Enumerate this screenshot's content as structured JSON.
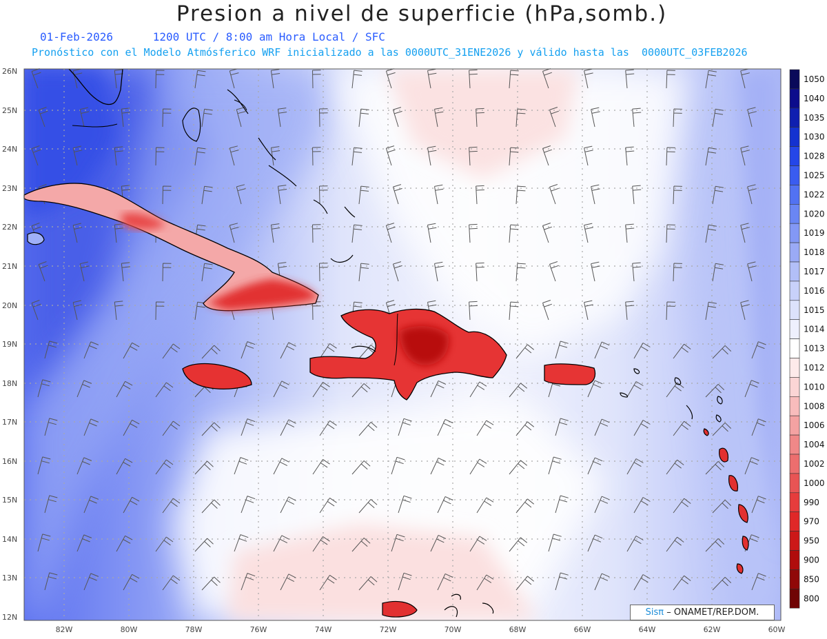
{
  "title": "Presion a nivel de superficie (hPa,somb.)",
  "subtitle_line1": "01-Feb-2026      1200 UTC / 8:00 am Hora Local / SFC",
  "subtitle_line2": "Pronóstico con el Modelo Atmósferico WRF inicializado a las 0000UTC_31ENE2026 y válido hasta las  0000UTC_03FEB2026",
  "lat_labels": [
    "26N",
    "25N",
    "24N",
    "23N",
    "22N",
    "21N",
    "20N",
    "19N",
    "18N",
    "17N",
    "16N",
    "15N",
    "14N",
    "13N",
    "12N"
  ],
  "lon_labels": [
    "82W",
    "80W",
    "78W",
    "76W",
    "74W",
    "72W",
    "70W",
    "68W",
    "66W",
    "64W",
    "62W",
    "60W"
  ],
  "colorbar": {
    "levels": [
      "1050",
      "1040",
      "1035",
      "1030",
      "1028",
      "1025",
      "1022",
      "1020",
      "1019",
      "1018",
      "1017",
      "1016",
      "1015",
      "1014",
      "1013",
      "1012",
      "1010",
      "1008",
      "1006",
      "1004",
      "1002",
      "1000",
      "990",
      "970",
      "950",
      "900",
      "850",
      "800"
    ],
    "colors": [
      "#0a0a5a",
      "#0c0c8c",
      "#0f1fb0",
      "#1432d0",
      "#2446e8",
      "#3a5cf0",
      "#5272f2",
      "#6a86f4",
      "#8398f5",
      "#9aaaf6",
      "#b2bff8",
      "#c8d1fa",
      "#dce2fb",
      "#eef0fd",
      "#ffffff",
      "#fdeaea",
      "#fbd5d5",
      "#f8bcbc",
      "#f4a2a2",
      "#f08888",
      "#ec6e6e",
      "#e85454",
      "#e63c3c",
      "#e02828",
      "#cc1818",
      "#b00c0c",
      "#900808",
      "#700404"
    ]
  },
  "credit": {
    "logo": "Sisπ",
    "text": "– ONAMET/REP.DOM."
  }
}
